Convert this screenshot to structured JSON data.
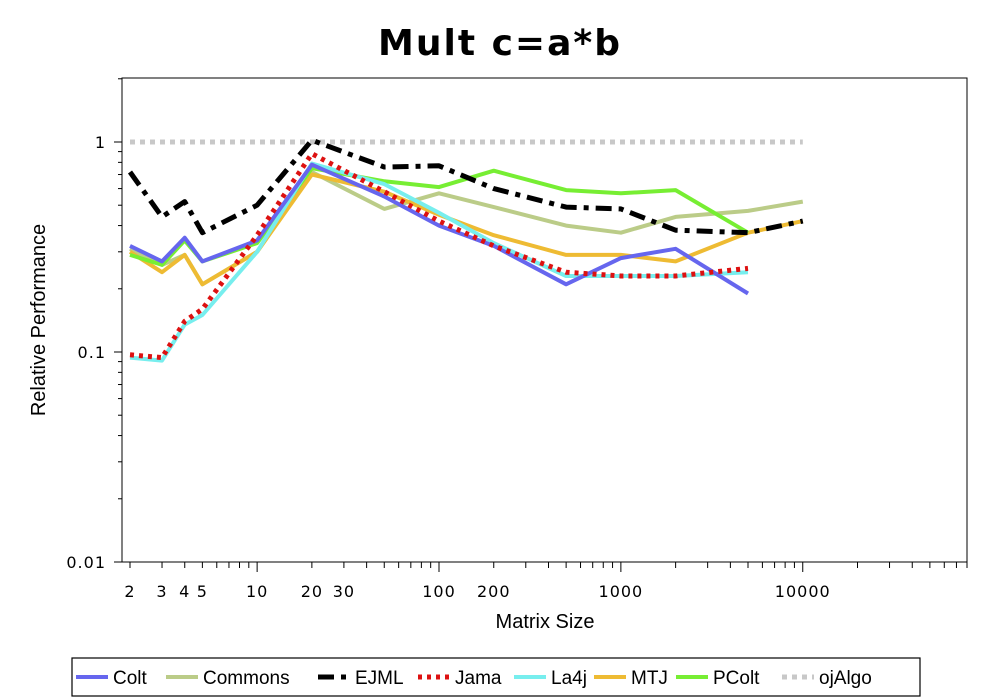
{
  "chart_data": {
    "type": "line",
    "title": "Mult c=a*b",
    "xlabel": "Matrix Size",
    "ylabel": "Relative Performance",
    "x_scale": "log",
    "y_scale": "log",
    "xlim": [
      2,
      80000
    ],
    "ylim": [
      0.01,
      2
    ],
    "x_ticks": [
      {
        "value": 2,
        "label": "2"
      },
      {
        "value": 3,
        "label": "3"
      },
      {
        "value": 4,
        "label": "4"
      },
      {
        "value": 5,
        "label": "5"
      },
      {
        "value": 10,
        "label": "10"
      },
      {
        "value": 20,
        "label": "20"
      },
      {
        "value": 30,
        "label": "30"
      },
      {
        "value": 100,
        "label": "100"
      },
      {
        "value": 200,
        "label": "200"
      },
      {
        "value": 1000,
        "label": "1000"
      },
      {
        "value": 10000,
        "label": "10000"
      }
    ],
    "y_ticks": [
      {
        "value": 0.01,
        "label": "0.01"
      },
      {
        "value": 0.1,
        "label": "0.1"
      },
      {
        "value": 1,
        "label": "1"
      }
    ],
    "grid": false,
    "legend_position": "bottom",
    "series": [
      {
        "name": "Colt",
        "color": "#6666ee",
        "dash": "solid",
        "x": [
          2,
          3,
          4,
          5,
          10,
          20,
          50,
          100,
          200,
          500,
          1000,
          2000,
          5000
        ],
        "y": [
          0.32,
          0.27,
          0.35,
          0.27,
          0.34,
          0.78,
          0.55,
          0.4,
          0.32,
          0.21,
          0.28,
          0.31,
          0.19
        ]
      },
      {
        "name": "Commons",
        "color": "#bbcc88",
        "dash": "solid",
        "x": [
          2,
          3,
          4,
          5,
          10,
          20,
          50,
          100,
          200,
          500,
          1000,
          2000,
          5000,
          10000
        ],
        "y": [
          0.31,
          0.26,
          0.29,
          0.21,
          0.3,
          0.72,
          0.48,
          0.57,
          0.49,
          0.4,
          0.37,
          0.44,
          0.47,
          0.52
        ]
      },
      {
        "name": "EJML",
        "color": "#000000",
        "dash": "dashdot",
        "x": [
          2,
          3,
          4,
          5,
          10,
          20,
          50,
          100,
          200,
          500,
          1000,
          2000,
          5000,
          10000
        ],
        "y": [
          0.72,
          0.44,
          0.52,
          0.37,
          0.5,
          1.02,
          0.76,
          0.77,
          0.6,
          0.49,
          0.48,
          0.38,
          0.37,
          0.42
        ]
      },
      {
        "name": "Jama",
        "color": "#dd1111",
        "dash": "dotted",
        "x": [
          2,
          3,
          4,
          5,
          10,
          20,
          50,
          100,
          200,
          500,
          1000,
          2000,
          5000
        ],
        "y": [
          0.097,
          0.094,
          0.14,
          0.16,
          0.36,
          0.88,
          0.58,
          0.42,
          0.32,
          0.24,
          0.23,
          0.23,
          0.25
        ]
      },
      {
        "name": "La4j",
        "color": "#77eeee",
        "dash": "solid",
        "x": [
          2,
          3,
          4,
          5,
          10,
          20,
          50,
          100,
          200,
          500,
          1000,
          2000,
          5000
        ],
        "y": [
          0.094,
          0.091,
          0.135,
          0.15,
          0.3,
          0.79,
          0.63,
          0.46,
          0.33,
          0.23,
          0.23,
          0.23,
          0.24
        ]
      },
      {
        "name": "MTJ",
        "color": "#eebb33",
        "dash": "solid",
        "x": [
          2,
          3,
          4,
          5,
          10,
          20,
          50,
          100,
          200,
          500,
          1000,
          2000,
          5000,
          10000
        ],
        "y": [
          0.3,
          0.24,
          0.29,
          0.21,
          0.3,
          0.7,
          0.58,
          0.45,
          0.36,
          0.29,
          0.29,
          0.27,
          0.37,
          0.42
        ]
      },
      {
        "name": "PColt",
        "color": "#77ee33",
        "dash": "solid",
        "x": [
          2,
          3,
          4,
          5,
          10,
          20,
          50,
          100,
          200,
          500,
          1000,
          2000,
          5000
        ],
        "y": [
          0.29,
          0.26,
          0.34,
          0.27,
          0.33,
          0.75,
          0.65,
          0.61,
          0.73,
          0.59,
          0.57,
          0.59,
          0.37
        ]
      },
      {
        "name": "ojAlgo",
        "color": "#c8c8c8",
        "dash": "dotted",
        "x": [
          2,
          10000
        ],
        "y": [
          1.0,
          1.0
        ]
      }
    ]
  }
}
